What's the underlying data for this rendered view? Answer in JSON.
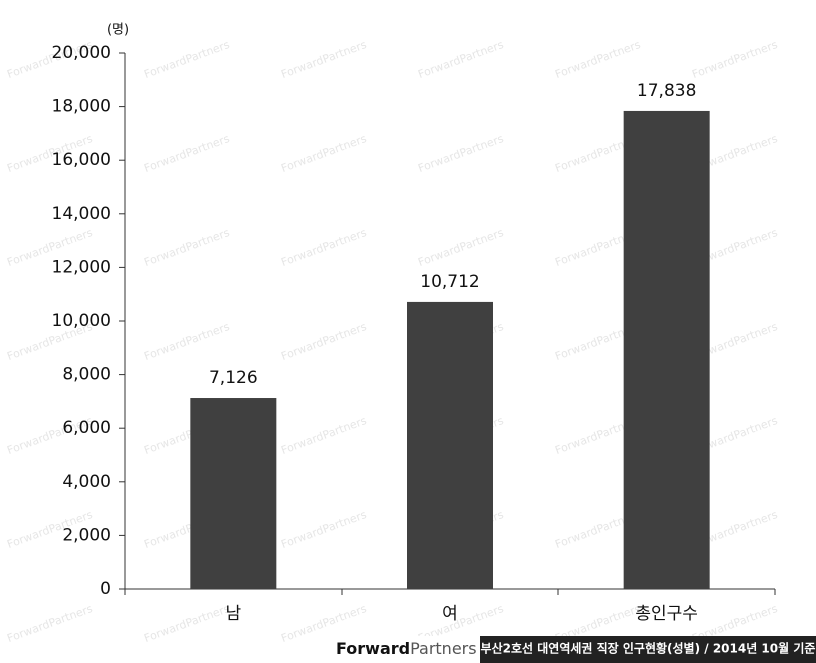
{
  "chart_data": {
    "type": "bar",
    "unit_label": "(명)",
    "categories": [
      "남",
      "여",
      "총인구수"
    ],
    "values": [
      7126,
      10712,
      17838
    ],
    "value_labels": [
      "7,126",
      "10,712",
      "17,838"
    ],
    "color": "#404040",
    "ylim": [
      0,
      20000
    ],
    "yticks": [
      0,
      {
        "value": 2000,
        "label": "2,000"
      },
      {
        "value": 4000,
        "label": "4,000"
      },
      {
        "value": 6000,
        "label": "6,000"
      },
      {
        "value": 8000,
        "label": "8,000"
      },
      {
        "value": 10000,
        "label": "10,000"
      },
      {
        "value": 12000,
        "label": "12,000"
      },
      {
        "value": 14000,
        "label": "14,000"
      },
      {
        "value": 16000,
        "label": "16,000"
      },
      {
        "value": 18000,
        "label": "18,000"
      },
      {
        "value": 20000,
        "label": "20,000"
      }
    ],
    "grid": false
  },
  "watermark": "ForwardPartners",
  "footer": {
    "brand_bold": "Forward",
    "brand_light": "Partners",
    "caption": "부산2호선 대연역세권 직장 인구현황(성별) / 2014년 10월 기준"
  }
}
